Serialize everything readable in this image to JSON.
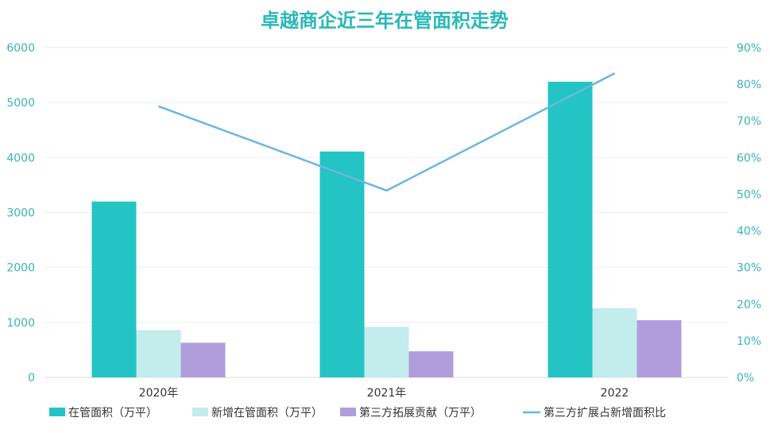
{
  "chart_data": {
    "type": "bar",
    "title": "卓越商企近三年在管面积走势",
    "categories": [
      "2020年",
      "2021年",
      "2022"
    ],
    "series": [
      {
        "name": "在管面积（万平）",
        "type": "bar",
        "axis": "left",
        "color": "#24c4c4",
        "values": [
          3200,
          4110,
          5380
        ]
      },
      {
        "name": "新增在管面积（万平）",
        "type": "bar",
        "axis": "left",
        "color": "#c3ecec",
        "values": [
          860,
          920,
          1260
        ]
      },
      {
        "name": "第三方拓展贡献（万平）",
        "type": "bar",
        "axis": "left",
        "color": "#b09ddb",
        "values": [
          630,
          475,
          1040
        ]
      },
      {
        "name": "第三方扩展占新增面积比",
        "type": "line",
        "axis": "right",
        "color": "#6ab7e0",
        "values": [
          0.74,
          0.51,
          0.83
        ]
      }
    ],
    "y_left": {
      "min": 0,
      "max": 6000,
      "ticks": [
        "0",
        "1000",
        "2000",
        "3000",
        "4000",
        "5000",
        "6000"
      ]
    },
    "y_right": {
      "min": 0,
      "max": 0.9,
      "ticks": [
        "0%",
        "10%",
        "20%",
        "30%",
        "40%",
        "50%",
        "60%",
        "70%",
        "80%",
        "90%"
      ]
    },
    "grid": true,
    "legend_position": "bottom"
  }
}
